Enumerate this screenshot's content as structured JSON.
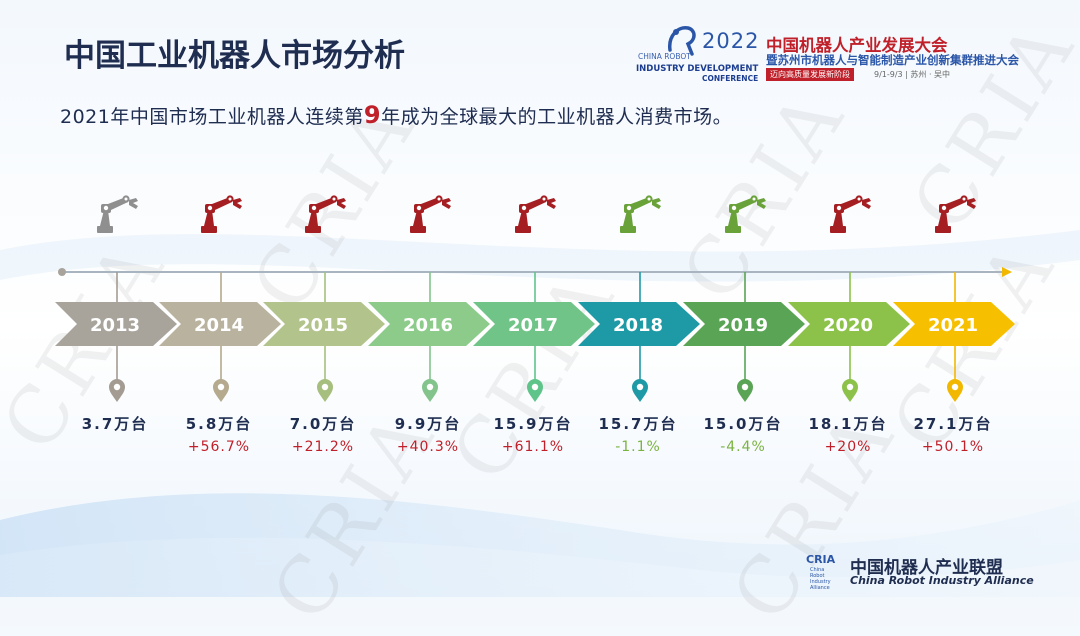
{
  "slide": {
    "title": "中国工业机器人市场分析",
    "subtitle_pre": "2021年中国市场工业机器人连续第",
    "subtitle_num": "9",
    "subtitle_post": "年成为全球最大的工业机器人消费市场。"
  },
  "conference": {
    "year": "2022",
    "en_line1": "CHINA ROBOT",
    "en_line2": "INDUSTRY DEVELOPMENT",
    "en_line3": "CONFERENCE",
    "name_cn": "中国机器人产业发展大会",
    "sub_cn": "暨苏州市机器人与智能制造产业创新集群推进大会",
    "tagline": "迈向高质量发展新阶段",
    "date_place": "9/1-9/3 | 苏州 · 吴中"
  },
  "alliance": {
    "logo": "CRIA",
    "logo_small": [
      "China",
      "Robot",
      "Industry",
      "Alliance"
    ],
    "name_cn": "中国机器人产业联盟",
    "name_en": "China Robot Industry Alliance"
  },
  "watermark": "CRIA",
  "colors": {
    "title": "#1f2d50",
    "highlight": "#c0202a",
    "growth_positive": "#c0202a",
    "growth_negative": "#7bb342",
    "robot_gray": "#8f8f8f",
    "robot_red": "#a51e22",
    "robot_green": "#6aa23a"
  },
  "chart_data": {
    "type": "timeline",
    "categories": [
      "2013",
      "2014",
      "2015",
      "2016",
      "2017",
      "2018",
      "2019",
      "2020",
      "2021"
    ],
    "values": [
      3.7,
      5.8,
      7.0,
      9.9,
      15.9,
      15.7,
      15.0,
      18.1,
      27.1
    ],
    "value_labels": [
      "3.7万台",
      "5.8万台",
      "7.0万台",
      "9.9万台",
      "15.9万台",
      "15.7万台",
      "15.0万台",
      "18.1万台",
      "27.1万台"
    ],
    "growth_labels": [
      "",
      "+56.7%",
      "+21.2%",
      "+40.3%",
      "+61.1%",
      "-1.1%",
      "-4.4%",
      "+20%",
      "+50.1%"
    ],
    "growth": [
      null,
      56.7,
      21.2,
      40.3,
      61.1,
      -1.1,
      -4.4,
      20,
      50.1
    ],
    "chevron_colors": [
      "#a8a49c",
      "#b9b29f",
      "#b2c38c",
      "#8ccb8a",
      "#70c488",
      "#1e9aa6",
      "#5aa455",
      "#8cc24a",
      "#f6c000"
    ],
    "pin_colors": [
      "#a49c92",
      "#b5a98e",
      "#a6bf7e",
      "#82c48c",
      "#5fc48a",
      "#1e9aa6",
      "#5aa455",
      "#8cc24a",
      "#f2b800"
    ],
    "robot_colors": [
      "gray",
      "red",
      "red",
      "red",
      "red",
      "green",
      "green",
      "red",
      "red"
    ]
  }
}
